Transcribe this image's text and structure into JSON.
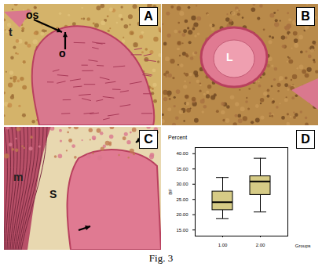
{
  "caption": "Fig. 3",
  "panels": [
    {
      "letter": "A",
      "labels": [
        "os",
        "o",
        "t"
      ]
    },
    {
      "letter": "B",
      "labels": [
        "L"
      ]
    },
    {
      "letter": "C",
      "labels": [
        "m",
        "S"
      ]
    },
    {
      "letter": "D",
      "labels": []
    }
  ],
  "chart_data": {
    "type": "box",
    "title": "Percent",
    "x_label": "Groups",
    "y_label": "BF",
    "categories": [
      "1.00",
      "2.00"
    ],
    "boxes": [
      {
        "min": 18.7,
        "q1": 21.5,
        "median": 24.1,
        "q3": 27.6,
        "max": 32.2
      },
      {
        "min": 20.9,
        "q1": 26.5,
        "median": 30.9,
        "q3": 32.6,
        "max": 38.5
      }
    ],
    "color": "#d6cb86",
    "ylim": [
      13,
      42
    ],
    "yticks": [
      {
        "value": 15,
        "label": "15.00"
      },
      {
        "value": 20,
        "label": "20.00"
      },
      {
        "value": 25,
        "label": "25.00"
      },
      {
        "value": 30,
        "label": "30.00"
      },
      {
        "value": 35,
        "label": "35.00"
      },
      {
        "value": 40,
        "label": "40.00"
      }
    ]
  }
}
